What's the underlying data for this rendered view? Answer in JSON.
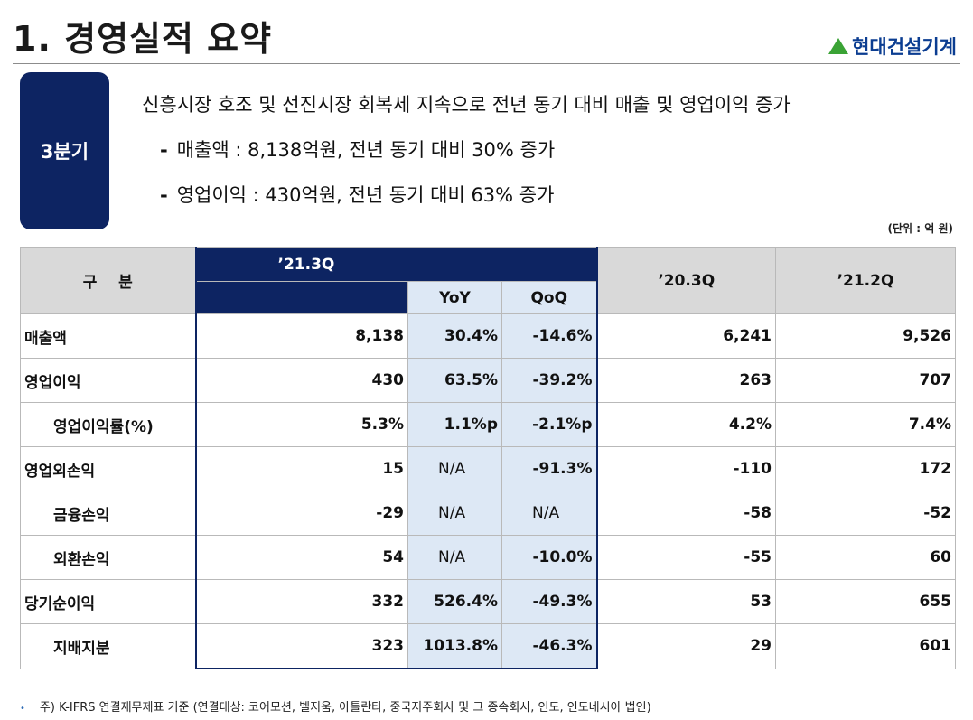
{
  "header": {
    "title": "1. 경영실적 요약",
    "logo_text": "현대건설기계",
    "logo_color": "#0b3d91",
    "logo_mark_color": "#3aa335"
  },
  "quarter_label": "3분기",
  "summary": {
    "headline": "신흥시장 호조 및 선진시장 회복세 지속으로 전년 동기 대비 매출 및 영업이익 증가",
    "bullets": [
      {
        "dash": "-",
        "text": "매출액 : 8,138억원, 전년 동기 대비 30% 증가"
      },
      {
        "dash": "-",
        "text": "영업이익 : 430억원, 전년 동기 대비 63% 증가"
      }
    ]
  },
  "unit_note": "(단위 : 억 원)",
  "table": {
    "headers": {
      "category": "구    분",
      "current": "’21.3Q",
      "yoy": "YoY",
      "qoq": "QoQ",
      "prev_year": "’20.3Q",
      "prev_quarter": "’21.2Q"
    },
    "rows": [
      {
        "label": "매출액",
        "indent": false,
        "current": "8,138",
        "yoy": "30.4%",
        "qoq": "-14.6%",
        "prev_year": "6,241",
        "prev_quarter": "9,526"
      },
      {
        "label": "영업이익",
        "indent": false,
        "current": "430",
        "yoy": "63.5%",
        "qoq": "-39.2%",
        "prev_year": "263",
        "prev_quarter": "707"
      },
      {
        "label": "영업이익률(%)",
        "indent": true,
        "current": "5.3%",
        "yoy": "1.1%p",
        "qoq": "-2.1%p",
        "prev_year": "4.2%",
        "prev_quarter": "7.4%"
      },
      {
        "label": "영업외손익",
        "indent": false,
        "current": "15",
        "yoy": "N/A",
        "qoq": "-91.3%",
        "prev_year": "-110",
        "prev_quarter": "172"
      },
      {
        "label": "금융손익",
        "indent": true,
        "current": "-29",
        "yoy": "N/A",
        "qoq": "N/A",
        "prev_year": "-58",
        "prev_quarter": "-52"
      },
      {
        "label": "외환손익",
        "indent": true,
        "current": "54",
        "yoy": "N/A",
        "qoq": "-10.0%",
        "prev_year": "-55",
        "prev_quarter": "60"
      },
      {
        "label": "당기순이익",
        "indent": false,
        "current": "332",
        "yoy": "526.4%",
        "qoq": "-49.3%",
        "prev_year": "53",
        "prev_quarter": "655"
      },
      {
        "label": "지배지분",
        "indent": true,
        "current": "323",
        "yoy": "1013.8%",
        "qoq": "-46.3%",
        "prev_year": "29",
        "prev_quarter": "601"
      }
    ]
  },
  "footnote": {
    "bullet": "•",
    "text": "주) K-IFRS 연결재무제표 기준 (연결대상: 코어모션, 벨지움, 아틀란타, 중국지주회사 및 그 종속회사, 인도, 인도네시아 법인)"
  },
  "colors": {
    "navy": "#0d2462",
    "highlight_blue": "#dde8f5",
    "header_gray": "#d9d9d9"
  }
}
